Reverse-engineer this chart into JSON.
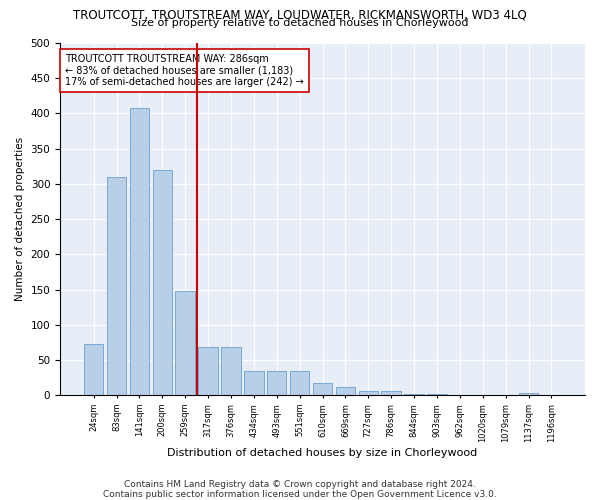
{
  "title": "TROUTCOTT, TROUTSTREAM WAY, LOUDWATER, RICKMANSWORTH, WD3 4LQ",
  "subtitle": "Size of property relative to detached houses in Chorleywood",
  "xlabel": "Distribution of detached houses by size in Chorleywood",
  "ylabel": "Number of detached properties",
  "categories": [
    "24sqm",
    "83sqm",
    "141sqm",
    "200sqm",
    "259sqm",
    "317sqm",
    "376sqm",
    "434sqm",
    "493sqm",
    "551sqm",
    "610sqm",
    "669sqm",
    "727sqm",
    "786sqm",
    "844sqm",
    "903sqm",
    "962sqm",
    "1020sqm",
    "1079sqm",
    "1137sqm",
    "1196sqm"
  ],
  "values": [
    72,
    310,
    408,
    320,
    148,
    68,
    68,
    35,
    35,
    35,
    18,
    12,
    6,
    6,
    2,
    1,
    0,
    0,
    0,
    3,
    0
  ],
  "bar_color": "#b8cfe8",
  "bar_edge_color": "#6a9fd0",
  "vline_color": "#cc0000",
  "annotation_text": "TROUTCOTT TROUTSTREAM WAY: 286sqm\n← 83% of detached houses are smaller (1,183)\n17% of semi-detached houses are larger (242) →",
  "annotation_box_color": "#ffffff",
  "annotation_box_edge": "#cc0000",
  "ylim": [
    0,
    500
  ],
  "yticks": [
    0,
    50,
    100,
    150,
    200,
    250,
    300,
    350,
    400,
    450,
    500
  ],
  "background_color": "#e8eef8",
  "footer": "Contains HM Land Registry data © Crown copyright and database right 2024.\nContains public sector information licensed under the Open Government Licence v3.0.",
  "title_fontsize": 8.5,
  "subtitle_fontsize": 8,
  "annotation_fontsize": 7,
  "footer_fontsize": 6.5,
  "ylabel_fontsize": 7.5,
  "xlabel_fontsize": 8,
  "ytick_fontsize": 7.5,
  "xtick_fontsize": 6
}
